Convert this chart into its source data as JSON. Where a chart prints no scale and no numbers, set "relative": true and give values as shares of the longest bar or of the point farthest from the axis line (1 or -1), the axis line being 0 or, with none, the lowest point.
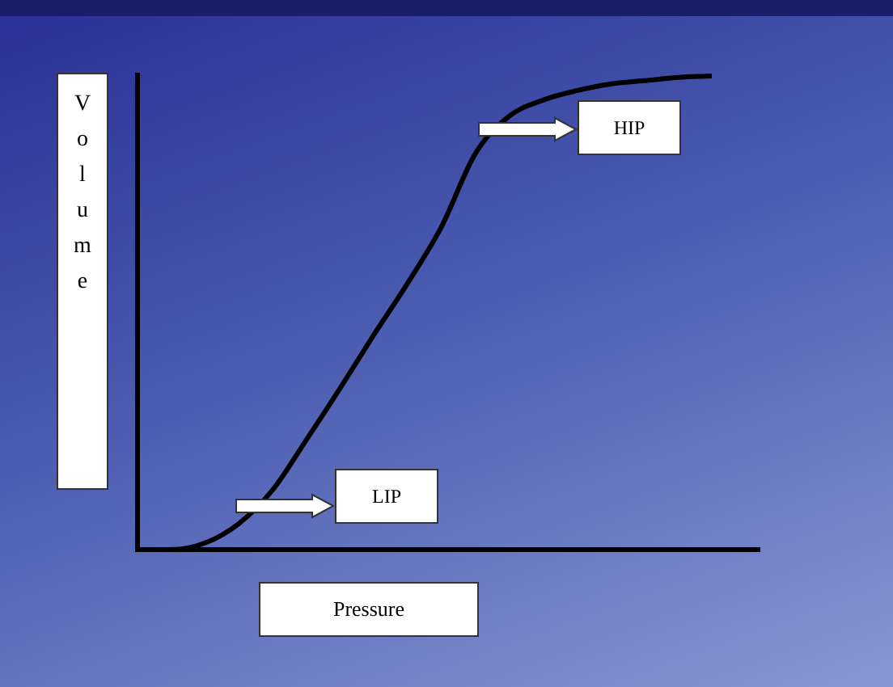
{
  "chart_data": {
    "type": "line",
    "relative": true,
    "xlabel": "Pressure",
    "ylabel": "Volume",
    "color": "#000000",
    "marker": "none",
    "legend": false,
    "categories": [
      null,
      null,
      null,
      null,
      null,
      null,
      null,
      null,
      null,
      null,
      null,
      null,
      null,
      null,
      null,
      null,
      null,
      null
    ],
    "values": [
      0,
      0,
      0.014,
      0.055,
      0.126,
      0.232,
      0.341,
      0.454,
      0.563,
      0.682,
      0.836,
      0.915,
      0.949,
      0.969,
      0.983,
      0.99,
      0.997,
      1
    ],
    "annotations": [
      "LIP",
      "HIP"
    ]
  }
}
